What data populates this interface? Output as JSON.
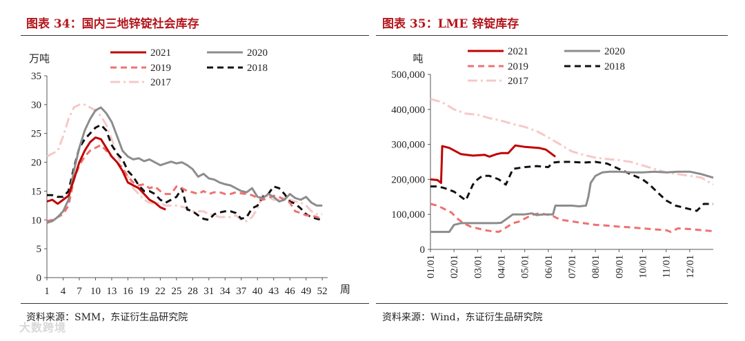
{
  "watermark": "大数跨境",
  "charts": {
    "left": {
      "title": "图表 34：国内三地锌锭社会库存",
      "unit": "万吨",
      "xlabel": "周",
      "source": "资料来源：SMM，东证衍生品研究院",
      "x_ticks": [
        "1",
        "4",
        "7",
        "10",
        "13",
        "16",
        "19",
        "22",
        "25",
        "28",
        "31",
        "34",
        "37",
        "40",
        "43",
        "46",
        "49",
        "52"
      ],
      "y_ticks": [
        "0",
        "5",
        "10",
        "15",
        "20",
        "25",
        "30",
        "35"
      ]
    },
    "right": {
      "title": "图表 35：LME 锌锭库存",
      "unit": "吨",
      "source": "资料来源：Wind，东证衍生品研究院",
      "x_ticks": [
        "01/01",
        "02/01",
        "03/01",
        "04/01",
        "05/01",
        "06/01",
        "07/01",
        "08/01",
        "09/01",
        "10/01",
        "11/01",
        "12/01"
      ],
      "y_ticks": [
        "0",
        "100,000",
        "200,000",
        "300,000",
        "400,000",
        "500,000"
      ]
    }
  },
  "chart_data": [
    {
      "type": "line",
      "title": "图表 34：国内三地锌锭社会库存",
      "ylabel": "万吨",
      "xlabel": "周",
      "xlim": [
        1,
        53
      ],
      "ylim": [
        0,
        35
      ],
      "legend": "top",
      "series": [
        {
          "name": "2021",
          "color": "#c00000",
          "style": "solid",
          "width": 3,
          "x": [
            1,
            2,
            3,
            4,
            5,
            6,
            7,
            8,
            9,
            10,
            11,
            12,
            13,
            14,
            15,
            16,
            17,
            18,
            19,
            20,
            21,
            22,
            23
          ],
          "y": [
            13.2,
            13.5,
            12.8,
            13.5,
            14.2,
            17.0,
            20.0,
            22.0,
            23.5,
            24.3,
            24.0,
            22.5,
            21.0,
            20.0,
            18.5,
            16.5,
            16.0,
            15.5,
            14.5,
            13.5,
            13.0,
            12.2,
            11.8
          ]
        },
        {
          "name": "2020",
          "color": "#8c8c8c",
          "style": "solid",
          "width": 3,
          "x": [
            1,
            2,
            3,
            4,
            5,
            6,
            7,
            8,
            9,
            10,
            11,
            12,
            13,
            14,
            15,
            16,
            17,
            18,
            19,
            20,
            21,
            22,
            23,
            24,
            25,
            26,
            27,
            28,
            29,
            30,
            31,
            32,
            33,
            34,
            35,
            36,
            37,
            38,
            39,
            40,
            41,
            42,
            43,
            44,
            45,
            46,
            47,
            48,
            49,
            50,
            51,
            52
          ],
          "y": [
            9.5,
            9.8,
            10.5,
            11.5,
            13.5,
            18.5,
            22.5,
            25.5,
            27.5,
            29.0,
            29.5,
            28.5,
            27.0,
            24.5,
            22.0,
            21.0,
            20.5,
            20.7,
            20.2,
            20.5,
            20.0,
            19.5,
            19.8,
            20.1,
            19.8,
            20.0,
            19.5,
            18.8,
            17.5,
            18.0,
            17.2,
            17.0,
            16.5,
            16.2,
            16.0,
            15.5,
            15.0,
            14.8,
            15.5,
            14.0,
            13.8,
            14.5,
            14.0,
            13.2,
            13.5,
            14.5,
            13.8,
            13.5,
            14.0,
            13.0,
            12.5,
            12.5
          ]
        },
        {
          "name": "2019",
          "color": "#f07070",
          "style": "dashed",
          "width": 3,
          "x": [
            1,
            2,
            3,
            4,
            5,
            6,
            7,
            8,
            9,
            10,
            11,
            12,
            13,
            14,
            15,
            16,
            17,
            18,
            19,
            20,
            21,
            22,
            23,
            24,
            25,
            26,
            27,
            28,
            29,
            30,
            31,
            32,
            33,
            34,
            35,
            36,
            37,
            38,
            39,
            40,
            41,
            42,
            43,
            44,
            45,
            46,
            47,
            48,
            49,
            50,
            51,
            52
          ],
          "y": [
            9.8,
            10.0,
            10.5,
            11.0,
            12.5,
            17.0,
            19.5,
            21.0,
            22.0,
            22.5,
            23.0,
            22.0,
            21.0,
            20.0,
            19.0,
            17.5,
            16.5,
            16.0,
            16.2,
            15.5,
            15.8,
            15.0,
            14.5,
            14.5,
            15.8,
            15.5,
            15.0,
            14.8,
            14.5,
            15.0,
            14.5,
            14.8,
            14.8,
            14.5,
            14.5,
            14.8,
            14.6,
            14.5,
            14.3,
            13.8,
            13.5,
            13.8,
            14.2,
            14.0,
            13.5,
            13.0,
            11.5,
            11.2,
            10.8,
            10.8,
            10.5,
            10.2
          ]
        },
        {
          "name": "2018",
          "color": "#111111",
          "style": "dashed",
          "width": 3,
          "x": [
            1,
            2,
            3,
            4,
            5,
            6,
            7,
            8,
            9,
            10,
            11,
            12,
            13,
            14,
            15,
            16,
            17,
            18,
            19,
            20,
            21,
            22,
            23,
            24,
            25,
            26,
            27,
            28,
            29,
            30,
            31,
            32,
            33,
            34,
            35,
            36,
            37,
            38,
            39,
            40,
            41,
            42,
            43,
            44,
            45,
            46,
            47,
            48,
            49,
            50,
            51,
            52
          ],
          "y": [
            14.3,
            14.3,
            14.0,
            14.0,
            15.0,
            19.0,
            22.5,
            24.0,
            25.0,
            26.0,
            26.5,
            25.5,
            23.0,
            21.5,
            20.5,
            18.5,
            17.5,
            16.0,
            15.0,
            15.0,
            14.5,
            13.5,
            13.0,
            13.5,
            14.0,
            15.5,
            11.8,
            11.5,
            10.8,
            10.2,
            10.0,
            11.0,
            11.3,
            11.5,
            11.5,
            11.2,
            10.2,
            10.5,
            12.0,
            12.5,
            14.0,
            14.5,
            15.8,
            15.5,
            14.5,
            13.2,
            12.8,
            12.0,
            11.0,
            10.5,
            10.2,
            10.0
          ]
        },
        {
          "name": "2017",
          "color": "#f6c8c8",
          "style": "dashdot",
          "width": 3,
          "x": [
            1,
            2,
            3,
            4,
            5,
            6,
            7,
            8,
            9,
            10,
            11,
            12,
            13,
            14,
            15,
            16,
            17,
            18,
            19,
            20,
            21,
            22,
            23,
            24,
            25,
            26,
            27,
            28,
            29,
            30,
            31,
            32,
            33,
            34,
            35,
            36,
            37,
            38,
            39,
            40,
            41,
            42,
            43,
            44,
            45,
            46,
            47,
            48,
            49,
            50,
            51,
            52
          ],
          "y": [
            21.0,
            21.5,
            22.0,
            24.5,
            27.5,
            29.5,
            30.0,
            30.0,
            29.5,
            29.0,
            28.0,
            26.5,
            24.0,
            21.5,
            19.0,
            17.5,
            15.5,
            14.5,
            13.5,
            13.0,
            12.8,
            13.0,
            12.5,
            12.5,
            12.5,
            12.3,
            12.0,
            11.5,
            11.5,
            11.5,
            11.0,
            10.8,
            10.5,
            10.5,
            10.5,
            10.8,
            10.0,
            9.8,
            10.5,
            12.0,
            14.5,
            14.0,
            13.5,
            13.5,
            13.8,
            13.5,
            13.2,
            13.0,
            12.5,
            11.5,
            11.0,
            11.0
          ]
        }
      ]
    },
    {
      "type": "line",
      "title": "图表 35：LME 锌锭库存",
      "ylabel": "吨",
      "xlabel": "",
      "x_unit": "month (1.0 = 01/01)",
      "xlim": [
        1,
        13
      ],
      "ylim": [
        0,
        500000
      ],
      "legend": "top",
      "series": [
        {
          "name": "2021",
          "color": "#c00000",
          "style": "solid",
          "width": 3,
          "x": [
            1.0,
            1.3,
            1.45,
            1.5,
            1.8,
            2.3,
            2.8,
            3.3,
            3.5,
            3.8,
            4.0,
            4.3,
            4.6,
            5.0,
            5.2,
            5.6,
            5.9,
            6.1,
            6.3
          ],
          "y": [
            200000,
            198000,
            190000,
            295000,
            290000,
            272000,
            268000,
            270000,
            265000,
            272000,
            275000,
            275000,
            297000,
            293000,
            292000,
            290000,
            285000,
            275000,
            265000
          ]
        },
        {
          "name": "2020",
          "color": "#8c8c8c",
          "style": "solid",
          "width": 3,
          "x": [
            1.0,
            1.8,
            2.0,
            2.3,
            2.6,
            3.0,
            3.5,
            3.8,
            4.0,
            4.5,
            5.0,
            5.3,
            5.5,
            5.8,
            6.0,
            6.2,
            6.3,
            6.5,
            7.0,
            7.3,
            7.6,
            7.7,
            7.8,
            8.0,
            8.3,
            8.6,
            9.0,
            9.5,
            10.0,
            10.5,
            11.0,
            11.5,
            12.0,
            12.5,
            13.0
          ],
          "y": [
            50000,
            50000,
            70000,
            75000,
            75000,
            75000,
            75000,
            75000,
            76000,
            100000,
            100000,
            103000,
            98000,
            100000,
            100000,
            100000,
            125000,
            125000,
            125000,
            123000,
            125000,
            150000,
            190000,
            210000,
            220000,
            222000,
            222000,
            220000,
            220000,
            222000,
            220000,
            222000,
            222000,
            215000,
            205000
          ]
        },
        {
          "name": "2019",
          "color": "#f07070",
          "style": "dashed",
          "width": 3,
          "x": [
            1.0,
            1.3,
            1.6,
            1.9,
            2.1,
            2.4,
            2.7,
            3.0,
            3.3,
            3.6,
            3.9,
            4.2,
            4.5,
            4.8,
            5.0,
            5.3,
            5.6,
            5.9,
            6.2,
            6.5,
            7.0,
            7.5,
            8.0,
            8.5,
            9.0,
            9.5,
            10.0,
            10.5,
            11.0,
            11.2,
            11.5,
            12.0,
            12.5,
            13.0
          ],
          "y": [
            130000,
            125000,
            115000,
            105000,
            90000,
            75000,
            65000,
            60000,
            55000,
            52000,
            50000,
            62000,
            75000,
            80000,
            88000,
            98000,
            103000,
            100000,
            95000,
            85000,
            80000,
            75000,
            70000,
            68000,
            65000,
            63000,
            60000,
            57000,
            55000,
            50000,
            60000,
            58000,
            55000,
            52000
          ]
        },
        {
          "name": "2018",
          "color": "#111111",
          "style": "dashed",
          "width": 3,
          "x": [
            1.0,
            1.3,
            1.6,
            2.0,
            2.3,
            2.5,
            2.8,
            3.0,
            3.2,
            3.5,
            3.9,
            4.2,
            4.5,
            5.0,
            5.5,
            6.0,
            6.2,
            6.5,
            7.0,
            7.5,
            8.0,
            8.5,
            9.0,
            9.5,
            10.0,
            10.3,
            10.6,
            11.0,
            11.4,
            11.7,
            12.0,
            12.3,
            12.6,
            13.0
          ],
          "y": [
            180000,
            180000,
            175000,
            165000,
            150000,
            140000,
            185000,
            200000,
            210000,
            210000,
            200000,
            185000,
            230000,
            235000,
            238000,
            235000,
            248000,
            250000,
            250000,
            248000,
            250000,
            245000,
            230000,
            215000,
            200000,
            185000,
            165000,
            140000,
            125000,
            120000,
            115000,
            110000,
            130000,
            130000
          ]
        },
        {
          "name": "2017",
          "color": "#f6c8c8",
          "style": "dashdot",
          "width": 3,
          "x": [
            1.0,
            1.5,
            2.0,
            2.5,
            3.0,
            3.5,
            4.0,
            4.5,
            5.0,
            5.5,
            6.0,
            6.5,
            7.0,
            7.5,
            8.0,
            8.5,
            9.0,
            9.5,
            10.0,
            10.5,
            11.0,
            11.5,
            12.0,
            12.5,
            13.0
          ],
          "y": [
            430000,
            420000,
            400000,
            388000,
            385000,
            375000,
            368000,
            358000,
            350000,
            338000,
            320000,
            300000,
            280000,
            270000,
            262000,
            258000,
            255000,
            250000,
            240000,
            230000,
            220000,
            215000,
            210000,
            205000,
            185000
          ]
        }
      ]
    }
  ]
}
